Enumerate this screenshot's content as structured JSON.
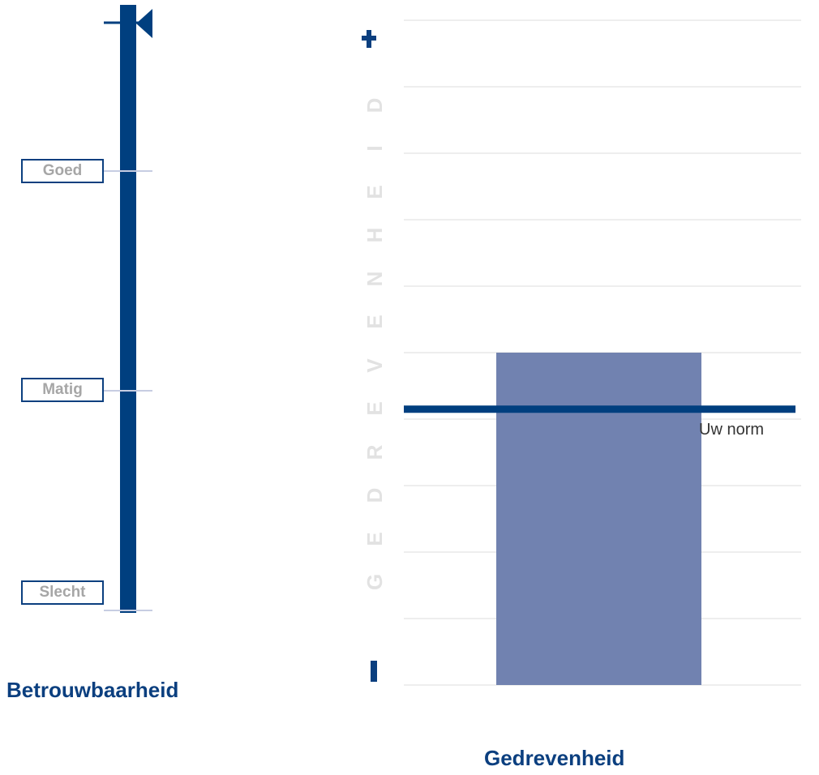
{
  "gauge": {
    "title": "Betrouwbaarheid",
    "levels": [
      {
        "label": "Goed"
      },
      {
        "label": "Matig"
      },
      {
        "label": "Slecht"
      }
    ],
    "value_fraction": 1.0,
    "colors": {
      "fill": "#003f7f",
      "track": "#c7cde2",
      "label_border": "#0b3f7f",
      "label_text": "#a6a6a6"
    }
  },
  "chart_data": {
    "type": "bar",
    "title": "Gedrevenheid",
    "ylabel": "GEDREVENHEID",
    "y_max_label": "+",
    "y_min_label": "−",
    "ylim": [
      0,
      10
    ],
    "categories": [
      ""
    ],
    "values": [
      5.0
    ],
    "reference_line": {
      "label": "Uw norm",
      "value": 4.15
    },
    "grid": true,
    "colors": {
      "bar": "#7182b0",
      "norm_line": "#003f7f",
      "grid": "#eeeeee"
    }
  }
}
